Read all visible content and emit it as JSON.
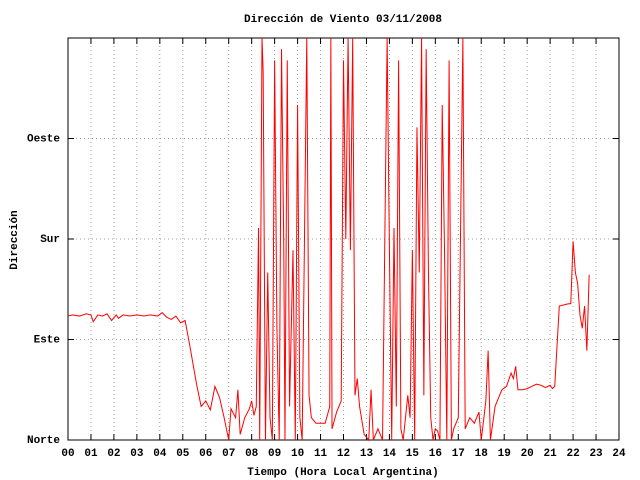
{
  "chart_data": {
    "type": "line",
    "title": "Dirección de Viento 03/11/2008",
    "x_label": "Tiempo (Hora Local Argentina)",
    "y_label": "Dirección",
    "xlim": [
      0,
      24
    ],
    "ylim": [
      0,
      360
    ],
    "xticks": [
      {
        "value": 0,
        "label": "00"
      },
      {
        "value": 1,
        "label": "01"
      },
      {
        "value": 2,
        "label": "02"
      },
      {
        "value": 3,
        "label": "03"
      },
      {
        "value": 4,
        "label": "04"
      },
      {
        "value": 5,
        "label": "05"
      },
      {
        "value": 6,
        "label": "06"
      },
      {
        "value": 7,
        "label": "07"
      },
      {
        "value": 8,
        "label": "08"
      },
      {
        "value": 9,
        "label": "09"
      },
      {
        "value": 10,
        "label": "10"
      },
      {
        "value": 11,
        "label": "11"
      },
      {
        "value": 12,
        "label": "12"
      },
      {
        "value": 13,
        "label": "13"
      },
      {
        "value": 14,
        "label": "14"
      },
      {
        "value": 15,
        "label": "15"
      },
      {
        "value": 16,
        "label": "16"
      },
      {
        "value": 17,
        "label": "17"
      },
      {
        "value": 18,
        "label": "18"
      },
      {
        "value": 19,
        "label": "19"
      },
      {
        "value": 20,
        "label": "20"
      },
      {
        "value": 21,
        "label": "21"
      },
      {
        "value": 22,
        "label": "22"
      },
      {
        "value": 23,
        "label": "23"
      },
      {
        "value": 24,
        "label": "24"
      }
    ],
    "yticks": [
      {
        "value": 0,
        "label": "Norte"
      },
      {
        "value": 90,
        "label": "Este"
      },
      {
        "value": 180,
        "label": "Sur"
      },
      {
        "value": 270,
        "label": "Oeste"
      }
    ],
    "grid": true,
    "color": "#ff0000",
    "x": [
      0,
      0.2,
      0.5,
      0.8,
      1.0,
      1.1,
      1.3,
      1.5,
      1.7,
      1.9,
      2.1,
      2.2,
      2.4,
      2.7,
      3.0,
      3.3,
      3.6,
      3.9,
      4.1,
      4.3,
      4.5,
      4.7,
      4.9,
      5.1,
      5.3,
      5.6,
      5.8,
      6.0,
      6.2,
      6.4,
      6.6,
      6.8,
      7.0,
      7.1,
      7.3,
      7.4,
      7.5,
      7.7,
      7.9,
      8.0,
      8.1,
      8.2,
      8.3,
      8.35,
      8.45,
      8.5,
      8.6,
      8.7,
      8.8,
      8.9,
      9.0,
      9.1,
      9.2,
      9.3,
      9.4,
      9.45,
      9.55,
      9.65,
      9.8,
      9.9,
      10.0,
      10.1,
      10.2,
      10.3,
      10.4,
      10.5,
      10.6,
      10.8,
      11.0,
      11.2,
      11.4,
      11.45,
      11.5,
      11.7,
      11.9,
      12.0,
      12.1,
      12.2,
      12.3,
      12.4,
      12.5,
      12.6,
      12.7,
      12.9,
      13.1,
      13.2,
      13.3,
      13.5,
      13.7,
      13.9,
      14.0,
      14.1,
      14.2,
      14.3,
      14.4,
      14.5,
      14.6,
      14.8,
      14.9,
      15.0,
      15.1,
      15.2,
      15.3,
      15.4,
      15.5,
      15.6,
      15.7,
      15.8,
      15.9,
      16.0,
      16.1,
      16.2,
      16.3,
      16.4,
      16.5,
      16.6,
      16.7,
      16.8,
      17.0,
      17.1,
      17.2,
      17.3,
      17.5,
      17.7,
      17.9,
      18.0,
      18.2,
      18.3,
      18.4,
      18.6,
      18.8,
      18.9,
      19.1,
      19.3,
      19.4,
      19.5,
      19.6,
      19.8,
      20.0,
      20.2,
      20.4,
      20.6,
      20.8,
      21.0,
      21.1,
      21.2,
      21.4,
      21.6,
      21.8,
      21.9,
      22.0,
      22.1,
      22.2,
      22.3,
      22.4,
      22.5,
      22.6,
      22.7
    ],
    "values": [
      111,
      112,
      111,
      113,
      112,
      106,
      112,
      111,
      113,
      107,
      112,
      109,
      112,
      111,
      112,
      111,
      112,
      111,
      114,
      110,
      108,
      111,
      105,
      107,
      85,
      50,
      30,
      35,
      27,
      48,
      38,
      20,
      0,
      28,
      20,
      45,
      5,
      20,
      28,
      35,
      22,
      30,
      190,
      0,
      360,
      330,
      0,
      150,
      20,
      0,
      340,
      100,
      0,
      350,
      170,
      0,
      340,
      30,
      170,
      0,
      300,
      20,
      0,
      180,
      360,
      40,
      20,
      15,
      15,
      15,
      30,
      360,
      10,
      25,
      35,
      340,
      180,
      360,
      170,
      360,
      40,
      55,
      30,
      5,
      0,
      45,
      0,
      10,
      0,
      360,
      170,
      0,
      190,
      30,
      340,
      10,
      0,
      40,
      20,
      170,
      0,
      280,
      150,
      360,
      40,
      350,
      150,
      20,
      0,
      10,
      8,
      0,
      300,
      170,
      0,
      340,
      0,
      10,
      20,
      190,
      360,
      10,
      20,
      15,
      25,
      0,
      35,
      80,
      0,
      30,
      40,
      45,
      48,
      60,
      55,
      66,
      45,
      45,
      46,
      48,
      50,
      49,
      47,
      49,
      46,
      48,
      120,
      121,
      122,
      122,
      178,
      150,
      140,
      112,
      100,
      120,
      80,
      148
    ]
  }
}
